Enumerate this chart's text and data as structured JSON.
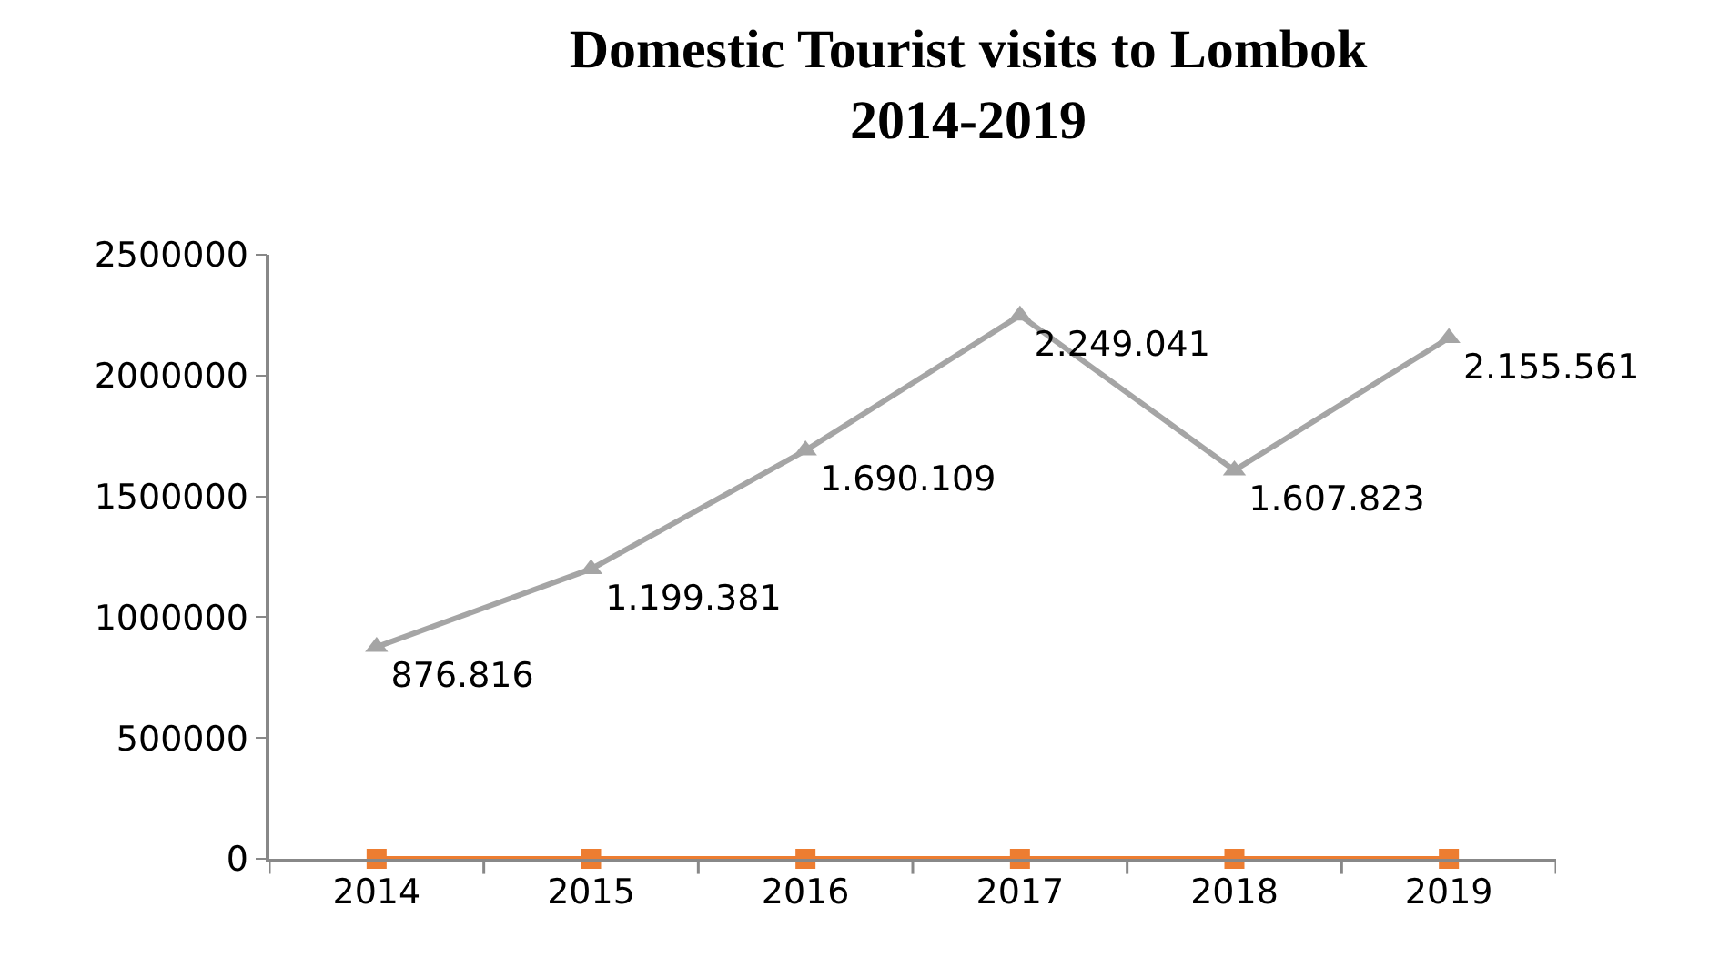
{
  "chart_data": {
    "type": "line",
    "title": "Domestic Tourist visits to Lombok\n2014-2019",
    "categories": [
      "2014",
      "2015",
      "2016",
      "2017",
      "2018",
      "2019"
    ],
    "series": [
      {
        "color": "#a5a5a5",
        "marker": "triangle",
        "values": [
          876816,
          1199381,
          1690109,
          2249041,
          1607823,
          2155561
        ],
        "value_labels": [
          "876.816",
          "1.199.381",
          "1.690.109",
          "2.249.041",
          "1.607.823",
          "2.155.561"
        ]
      },
      {
        "color": "#ed7d31",
        "marker": "square",
        "values": [
          0,
          0,
          0,
          0,
          0,
          0
        ]
      }
    ],
    "ylim": [
      0,
      2500000
    ],
    "yticks": [
      0,
      500000,
      1000000,
      1500000,
      2000000,
      2500000
    ],
    "grid": false,
    "line_style": "solid"
  }
}
